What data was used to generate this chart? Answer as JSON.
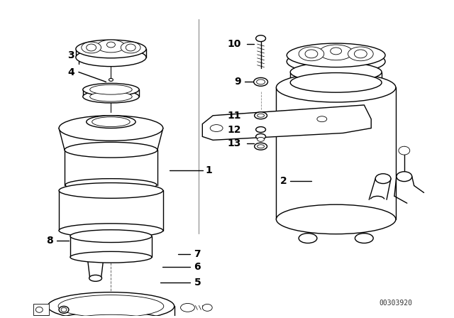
{
  "bg_color": "#ffffff",
  "line_color": "#000000",
  "watermark_text": "00303920",
  "label_font_size": 9,
  "label_font_size_large": 10
}
